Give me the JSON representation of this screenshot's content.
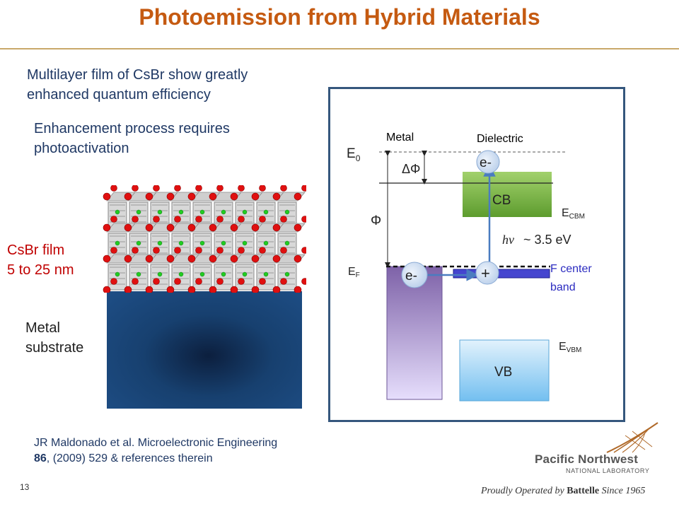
{
  "slide": {
    "title": "Photoemission from Hybrid Materials",
    "bullet1": "Multilayer film of CsBr show greatly enhanced quantum efficiency",
    "bullet2": "Enhancement process requires photoactivation",
    "film_label_1": "CsBr film",
    "film_label_2": "5 to 25 nm",
    "substrate_label_1": "Metal",
    "substrate_label_2": "substrate",
    "reference_part1": "JR Maldonado et al. Microelectronic Engineering",
    "reference_volume": "86",
    "reference_part2": ", (2009) 529 & references therein",
    "page_number": "13"
  },
  "diagram": {
    "metal_label": "Metal",
    "dielectric_label": "Dielectric",
    "vacuum_level": "E",
    "vacuum_sub": "0",
    "fermi_level": "E",
    "fermi_sub": "F",
    "delta_phi": "ΔΦ",
    "phi": "Φ",
    "electron_top": "e-",
    "electron_bottom": "e-",
    "hole": "+",
    "cb": "CB",
    "vb": "VB",
    "ecbm": "E",
    "ecbm_sub": "CBM",
    "evbm": "E",
    "evbm_sub": "VBM",
    "photon_symbol": "hν",
    "photon_energy": "~ 3.5 eV",
    "fcenter_1": "F center",
    "fcenter_2": "band",
    "colors": {
      "cb": "#7dbb46",
      "vb": "#9ad0f2",
      "metal": "#a890c8",
      "fcenter": "#3a3acc",
      "arrow": "#4a7cc0"
    }
  },
  "footer": {
    "logo_name": "Pacific Northwest",
    "logo_sub": "NATIONAL LABORATORY",
    "operated_1": "Proudly Operated by ",
    "operated_brand": "Battelle",
    "operated_2": " Since 1965"
  }
}
